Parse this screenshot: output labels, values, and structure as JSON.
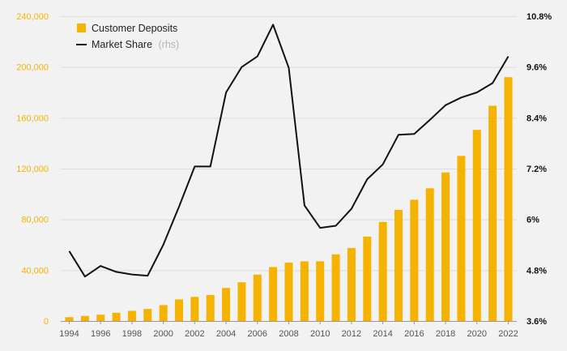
{
  "chart_data": {
    "type": "bar+line",
    "x": [
      1994,
      1995,
      1996,
      1997,
      1998,
      1999,
      2000,
      2001,
      2002,
      2003,
      2004,
      2005,
      2006,
      2007,
      2008,
      2009,
      2010,
      2011,
      2012,
      2013,
      2014,
      2015,
      2016,
      2017,
      2018,
      2019,
      2020,
      2021,
      2022
    ],
    "series": [
      {
        "name": "Customer Deposits",
        "type": "bar",
        "axis": "left",
        "color": "#f5b300",
        "values": [
          3000,
          4000,
          5000,
          6500,
          8000,
          9500,
          12500,
          17000,
          19000,
          20500,
          26000,
          30500,
          36500,
          42500,
          46000,
          47000,
          47000,
          52500,
          57500,
          66500,
          78000,
          87500,
          95500,
          104500,
          117000,
          130000,
          150500,
          169500,
          192000
        ]
      },
      {
        "name": "Market Share",
        "type": "line",
        "axis": "right",
        "color": "#111111",
        "values": [
          5.25,
          4.65,
          4.9,
          4.76,
          4.7,
          4.67,
          5.4,
          6.3,
          7.25,
          7.25,
          9.0,
          9.6,
          9.85,
          10.6,
          9.58,
          6.33,
          5.8,
          5.85,
          6.25,
          6.95,
          7.3,
          8.0,
          8.02,
          8.35,
          8.7,
          8.88,
          9.0,
          9.22,
          9.85
        ]
      }
    ],
    "title": "",
    "xlabel": "",
    "ylabel": "",
    "ylim_left": [
      0,
      240000
    ],
    "ylim_right": [
      3.6,
      10.8
    ],
    "left_ticks": [
      "0",
      "40,000",
      "80,000",
      "120,000",
      "160,000",
      "200,000",
      "240,000"
    ],
    "right_ticks": [
      "3.6%",
      "4.8%",
      "6%",
      "7.2%",
      "8.4%",
      "9.6%",
      "10.8%"
    ],
    "x_ticks": [
      "1994",
      "1996",
      "1998",
      "2000",
      "2002",
      "2004",
      "2006",
      "2008",
      "2010",
      "2012",
      "2014",
      "2016",
      "2018",
      "2020",
      "2022"
    ],
    "legend": {
      "position": "top-left",
      "items": [
        {
          "label": "Customer Deposits",
          "note": ""
        },
        {
          "label": "Market Share",
          "note": "(rhs)"
        }
      ]
    },
    "colors": {
      "bar": "#f5b300",
      "line": "#111111",
      "grid": "#dcdcdc",
      "left_axis": "#f5b300",
      "right_axis": "#111111"
    }
  }
}
